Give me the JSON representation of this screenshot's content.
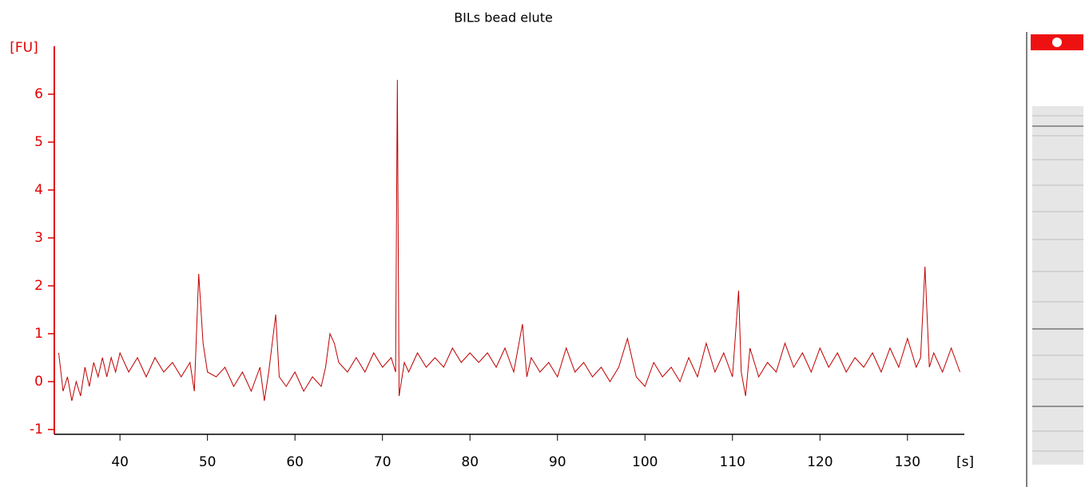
{
  "chart_data": {
    "type": "line",
    "title": "BILs bead elute",
    "y_label": "[FU]",
    "x_label": "[s]",
    "color": "#c00000",
    "axis_color": "#e00000",
    "xlim": [
      32.5,
      136.5
    ],
    "ylim": [
      -1.1,
      7
    ],
    "xticks": [
      40,
      50,
      60,
      70,
      80,
      90,
      100,
      110,
      120,
      130
    ],
    "yticks": [
      -1,
      0,
      1,
      2,
      3,
      4,
      5,
      6
    ],
    "x": [
      33,
      33.5,
      34,
      34.5,
      35,
      35.5,
      36,
      36.5,
      37,
      37.5,
      38,
      38.5,
      39,
      39.5,
      40,
      41,
      42,
      43,
      44,
      45,
      46,
      47,
      48,
      48.5,
      49,
      49.5,
      50,
      51,
      52,
      53,
      54,
      55,
      56,
      56.5,
      57,
      57.8,
      58.2,
      59,
      60,
      61,
      62,
      63,
      63.5,
      64,
      64.5,
      65,
      66,
      67,
      68,
      69,
      70,
      71,
      71.5,
      71.7,
      71.9,
      72.5,
      73,
      74,
      75,
      76,
      77,
      78,
      79,
      80,
      81,
      82,
      83,
      84,
      85,
      86,
      86.5,
      87,
      88,
      89,
      90,
      91,
      92,
      93,
      94,
      95,
      96,
      97,
      98,
      99,
      100,
      101,
      102,
      103,
      104,
      105,
      106,
      107,
      108,
      109,
      110,
      110.7,
      111,
      111.5,
      112,
      113,
      114,
      115,
      116,
      117,
      118,
      119,
      120,
      121,
      122,
      123,
      124,
      125,
      126,
      127,
      128,
      129,
      130,
      131,
      131.5,
      132,
      132.5,
      133,
      134,
      135,
      136
    ],
    "values": [
      0.6,
      -0.2,
      0.1,
      -0.4,
      0,
      -0.3,
      0.3,
      -0.1,
      0.4,
      0.1,
      0.5,
      0.1,
      0.5,
      0.2,
      0.6,
      0.2,
      0.5,
      0.1,
      0.5,
      0.2,
      0.4,
      0.1,
      0.4,
      -0.2,
      2.25,
      0.8,
      0.2,
      0.1,
      0.3,
      -0.1,
      0.2,
      -0.2,
      0.3,
      -0.4,
      0.2,
      1.4,
      0.1,
      -0.1,
      0.2,
      -0.2,
      0.1,
      -0.1,
      0.3,
      1,
      0.8,
      0.4,
      0.2,
      0.5,
      0.2,
      0.6,
      0.3,
      0.5,
      0.2,
      6.3,
      -0.3,
      0.4,
      0.2,
      0.6,
      0.3,
      0.5,
      0.3,
      0.7,
      0.4,
      0.6,
      0.4,
      0.6,
      0.3,
      0.7,
      0.2,
      1.2,
      0.1,
      0.5,
      0.2,
      0.4,
      0.1,
      0.7,
      0.2,
      0.4,
      0.1,
      0.3,
      0,
      0.3,
      0.9,
      0.1,
      -0.1,
      0.4,
      0.1,
      0.3,
      0,
      0.5,
      0.1,
      0.8,
      0.2,
      0.6,
      0.1,
      1.9,
      0.2,
      -0.3,
      0.7,
      0.1,
      0.4,
      0.2,
      0.8,
      0.3,
      0.6,
      0.2,
      0.7,
      0.3,
      0.6,
      0.2,
      0.5,
      0.3,
      0.6,
      0.2,
      0.7,
      0.3,
      0.9,
      0.3,
      0.5,
      2.4,
      0.3,
      0.6,
      0.2,
      0.7,
      0.2
    ]
  }
}
